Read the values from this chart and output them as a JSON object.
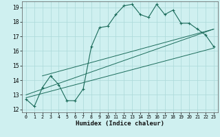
{
  "xlabel": "Humidex (Indice chaleur)",
  "bg_color": "#cff0f0",
  "line_color": "#1a6b5a",
  "grid_color": "#aad8d8",
  "xlim": [
    -0.5,
    23.5
  ],
  "ylim": [
    11.8,
    19.4
  ],
  "xticks": [
    0,
    1,
    2,
    3,
    4,
    5,
    6,
    7,
    8,
    9,
    10,
    11,
    12,
    13,
    14,
    15,
    16,
    17,
    18,
    19,
    20,
    21,
    22,
    23
  ],
  "yticks": [
    12,
    13,
    14,
    15,
    16,
    17,
    18,
    19
  ],
  "series1_x": [
    0,
    1,
    2,
    3,
    4,
    5,
    6,
    7,
    8,
    9,
    10,
    11,
    12,
    13,
    14,
    15,
    16,
    17,
    18,
    19,
    20,
    21,
    22,
    23
  ],
  "series1_y": [
    12.7,
    12.2,
    13.5,
    14.3,
    13.7,
    12.6,
    12.6,
    13.4,
    16.3,
    17.6,
    17.7,
    18.5,
    19.1,
    19.2,
    18.5,
    18.3,
    19.2,
    18.5,
    18.8,
    17.9,
    17.9,
    17.5,
    17.1,
    16.3
  ],
  "series2_x": [
    0,
    23
  ],
  "series2_y": [
    13.0,
    17.5
  ],
  "series3_x": [
    0,
    23
  ],
  "series3_y": [
    12.8,
    16.2
  ],
  "series4_x": [
    2,
    23
  ],
  "series4_y": [
    14.3,
    17.5
  ]
}
